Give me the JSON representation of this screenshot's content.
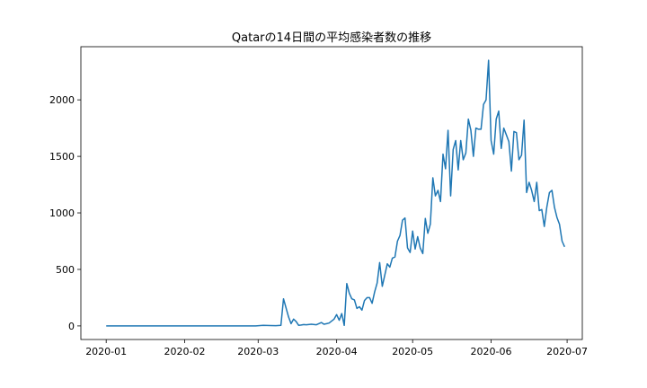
{
  "chart_data": {
    "type": "line",
    "title": "Qatarの14日間の平均感染者数の推移",
    "xlabel": "",
    "ylabel": "",
    "x_ticks": [
      "2020-01",
      "2020-02",
      "2020-03",
      "2020-04",
      "2020-05",
      "2020-06",
      "2020-07"
    ],
    "y_ticks": [
      0,
      500,
      1000,
      1500,
      2000
    ],
    "xlim": [
      "2019-12-22",
      "2020-07-07"
    ],
    "ylim": [
      -120,
      2470
    ],
    "grid": false,
    "legend": "none",
    "colors": {
      "line": "#1f77b4"
    },
    "series": [
      {
        "x": [
          "2020-01-01",
          "2020-01-15",
          "2020-02-01",
          "2020-02-15",
          "2020-02-29",
          "2020-03-03",
          "2020-03-06",
          "2020-03-08",
          "2020-03-10",
          "2020-03-11",
          "2020-03-13",
          "2020-03-14",
          "2020-03-15",
          "2020-03-16",
          "2020-03-17",
          "2020-03-18",
          "2020-03-19",
          "2020-03-20",
          "2020-03-22",
          "2020-03-24",
          "2020-03-26",
          "2020-03-27",
          "2020-03-28",
          "2020-03-29",
          "2020-03-31",
          "2020-04-01",
          "2020-04-02",
          "2020-04-03",
          "2020-04-04",
          "2020-04-05",
          "2020-04-06",
          "2020-04-07",
          "2020-04-08",
          "2020-04-09",
          "2020-04-10",
          "2020-04-11",
          "2020-04-12",
          "2020-04-13",
          "2020-04-14",
          "2020-04-15",
          "2020-04-16",
          "2020-04-17",
          "2020-04-18",
          "2020-04-19",
          "2020-04-20",
          "2020-04-21",
          "2020-04-22",
          "2020-04-23",
          "2020-04-24",
          "2020-04-25",
          "2020-04-26",
          "2020-04-27",
          "2020-04-28",
          "2020-04-29",
          "2020-04-30",
          "2020-05-01",
          "2020-05-02",
          "2020-05-03",
          "2020-05-04",
          "2020-05-05",
          "2020-05-06",
          "2020-05-07",
          "2020-05-08",
          "2020-05-09",
          "2020-05-10",
          "2020-05-11",
          "2020-05-12",
          "2020-05-13",
          "2020-05-14",
          "2020-05-15",
          "2020-05-16",
          "2020-05-17",
          "2020-05-18",
          "2020-05-19",
          "2020-05-20",
          "2020-05-21",
          "2020-05-22",
          "2020-05-23",
          "2020-05-24",
          "2020-05-25",
          "2020-05-26",
          "2020-05-27",
          "2020-05-28",
          "2020-05-29",
          "2020-05-30",
          "2020-05-31",
          "2020-06-01",
          "2020-06-02",
          "2020-06-03",
          "2020-06-04",
          "2020-06-05",
          "2020-06-06",
          "2020-06-07",
          "2020-06-08",
          "2020-06-09",
          "2020-06-10",
          "2020-06-11",
          "2020-06-12",
          "2020-06-13",
          "2020-06-14",
          "2020-06-15",
          "2020-06-16",
          "2020-06-17",
          "2020-06-18",
          "2020-06-19",
          "2020-06-20",
          "2020-06-21",
          "2020-06-22",
          "2020-06-23",
          "2020-06-24",
          "2020-06-25",
          "2020-06-26",
          "2020-06-27",
          "2020-06-28",
          "2020-06-29",
          "2020-06-30"
        ],
        "values": [
          0,
          0,
          0,
          0,
          0,
          5,
          3,
          2,
          5,
          240,
          80,
          20,
          60,
          40,
          5,
          8,
          12,
          10,
          15,
          10,
          30,
          15,
          20,
          25,
          60,
          100,
          50,
          110,
          5,
          375,
          290,
          240,
          230,
          155,
          170,
          140,
          225,
          250,
          250,
          200,
          300,
          380,
          560,
          350,
          450,
          550,
          520,
          600,
          610,
          750,
          800,
          935,
          955,
          690,
          650,
          840,
          680,
          790,
          690,
          640,
          950,
          820,
          900,
          1310,
          1150,
          1200,
          1100,
          1520,
          1390,
          1730,
          1150,
          1560,
          1640,
          1380,
          1640,
          1470,
          1530,
          1830,
          1730,
          1500,
          1750,
          1740,
          1740,
          1960,
          2000,
          2350,
          1640,
          1520,
          1830,
          1900,
          1570,
          1750,
          1690,
          1630,
          1370,
          1720,
          1710,
          1470,
          1510,
          1820,
          1180,
          1270,
          1200,
          1100,
          1270,
          1020,
          1030,
          880,
          1050,
          1180,
          1200,
          1050,
          960,
          900,
          750,
          700
        ]
      }
    ]
  }
}
